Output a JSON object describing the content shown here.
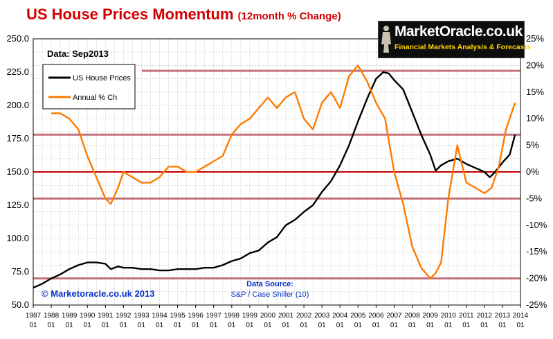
{
  "title": {
    "main": "US House Prices Momentum",
    "sub": "(12month % Change)"
  },
  "logo": {
    "name": "MarketOracle.co.uk",
    "tagline": "Financial Markets Analysis & Forecasts"
  },
  "annotations": {
    "data_date": "Data:  Sep2013",
    "copyright": "© Marketoracle.co.uk 2013",
    "source_label": "Data Source:",
    "source_value": "S&P / Case Shiller (10)"
  },
  "colors": {
    "house_prices": "#000000",
    "annual_change": "#ff7a00",
    "title": "#d40000",
    "horizontal_lines": "#b85c64",
    "zero_line": "#c00000",
    "copyright": "#0a2fc8",
    "source": "#0a2fc8"
  },
  "chart_data": {
    "type": "line",
    "title": "US House Prices Momentum",
    "subtitle": "(12month % Change)",
    "legend_position": "top-left",
    "grid": true,
    "ylim": [
      50,
      250
    ],
    "y2lim": [
      -25,
      25
    ],
    "y_ticks": [
      "50.0",
      "75.0",
      "100.0",
      "125.0",
      "150.0",
      "175.0",
      "200.0",
      "225.0",
      "250.0"
    ],
    "y2_ticks": [
      "-25%",
      "-20%",
      "-15%",
      "-10%",
      "-5%",
      "0%",
      "5%",
      "10%",
      "15%",
      "20%",
      "25%"
    ],
    "x_ticks": [
      {
        "year": "1987",
        "month": "01"
      },
      {
        "year": "1988",
        "month": "01"
      },
      {
        "year": "1989",
        "month": "01"
      },
      {
        "year": "1990",
        "month": "01"
      },
      {
        "year": "1991",
        "month": "01"
      },
      {
        "year": "1992",
        "month": "01"
      },
      {
        "year": "1993",
        "month": "01"
      },
      {
        "year": "1994",
        "month": "01"
      },
      {
        "year": "1995",
        "month": "01"
      },
      {
        "year": "1996",
        "month": "01"
      },
      {
        "year": "1997",
        "month": "01"
      },
      {
        "year": "1998",
        "month": "01"
      },
      {
        "year": "1999",
        "month": "01"
      },
      {
        "year": "2000",
        "month": "01"
      },
      {
        "year": "2001",
        "month": "01"
      },
      {
        "year": "2002",
        "month": "01"
      },
      {
        "year": "2003",
        "month": "01"
      },
      {
        "year": "2004",
        "month": "01"
      },
      {
        "year": "2005",
        "month": "01"
      },
      {
        "year": "2006",
        "month": "01"
      },
      {
        "year": "2007",
        "month": "01"
      },
      {
        "year": "2008",
        "month": "01"
      },
      {
        "year": "2009",
        "month": "01"
      },
      {
        "year": "2010",
        "month": "01"
      },
      {
        "year": "2011",
        "month": "01"
      },
      {
        "year": "2012",
        "month": "01"
      },
      {
        "year": "2013",
        "month": "01"
      },
      {
        "year": "2014",
        "month": "01"
      }
    ],
    "horizontal_lines_pct": [
      19,
      7,
      0,
      -5,
      -20
    ],
    "series": [
      {
        "name": "US House Prices",
        "axis": "left",
        "points": [
          [
            1987.0,
            63
          ],
          [
            1987.5,
            66
          ],
          [
            1988.0,
            70
          ],
          [
            1988.5,
            73
          ],
          [
            1989.0,
            77
          ],
          [
            1989.5,
            80
          ],
          [
            1990.0,
            82
          ],
          [
            1990.5,
            82
          ],
          [
            1991.0,
            81
          ],
          [
            1991.3,
            77
          ],
          [
            1991.7,
            79
          ],
          [
            1992.0,
            78
          ],
          [
            1992.5,
            78
          ],
          [
            1993.0,
            77
          ],
          [
            1993.5,
            77
          ],
          [
            1994.0,
            76
          ],
          [
            1994.5,
            76
          ],
          [
            1995.0,
            77
          ],
          [
            1995.5,
            77
          ],
          [
            1996.0,
            77
          ],
          [
            1996.5,
            78
          ],
          [
            1997.0,
            78
          ],
          [
            1997.5,
            80
          ],
          [
            1998.0,
            83
          ],
          [
            1998.5,
            85
          ],
          [
            1999.0,
            89
          ],
          [
            1999.5,
            91
          ],
          [
            2000.0,
            97
          ],
          [
            2000.5,
            101
          ],
          [
            2001.0,
            110
          ],
          [
            2001.5,
            114
          ],
          [
            2002.0,
            120
          ],
          [
            2002.5,
            125
          ],
          [
            2003.0,
            135
          ],
          [
            2003.5,
            143
          ],
          [
            2004.0,
            155
          ],
          [
            2004.5,
            170
          ],
          [
            2005.0,
            188
          ],
          [
            2005.5,
            205
          ],
          [
            2006.0,
            220
          ],
          [
            2006.4,
            225
          ],
          [
            2006.7,
            224
          ],
          [
            2007.0,
            219
          ],
          [
            2007.5,
            212
          ],
          [
            2008.0,
            195
          ],
          [
            2008.5,
            178
          ],
          [
            2009.0,
            163
          ],
          [
            2009.3,
            151
          ],
          [
            2009.6,
            155
          ],
          [
            2010.0,
            158
          ],
          [
            2010.5,
            160
          ],
          [
            2011.0,
            156
          ],
          [
            2011.5,
            153
          ],
          [
            2012.0,
            150
          ],
          [
            2012.3,
            146
          ],
          [
            2012.6,
            150
          ],
          [
            2013.0,
            157
          ],
          [
            2013.4,
            163
          ],
          [
            2013.7,
            178
          ]
        ]
      },
      {
        "name": "Annual % Ch",
        "axis": "right",
        "points": [
          [
            1988.0,
            11
          ],
          [
            1988.5,
            11
          ],
          [
            1989.0,
            10
          ],
          [
            1989.5,
            8
          ],
          [
            1990.0,
            3
          ],
          [
            1990.5,
            -1
          ],
          [
            1991.0,
            -5
          ],
          [
            1991.3,
            -6
          ],
          [
            1991.7,
            -3
          ],
          [
            1992.0,
            0
          ],
          [
            1992.5,
            -1
          ],
          [
            1993.0,
            -2
          ],
          [
            1993.5,
            -2
          ],
          [
            1994.0,
            -1
          ],
          [
            1994.5,
            1
          ],
          [
            1995.0,
            1
          ],
          [
            1995.5,
            0
          ],
          [
            1996.0,
            0
          ],
          [
            1996.5,
            1
          ],
          [
            1997.0,
            2
          ],
          [
            1997.5,
            3
          ],
          [
            1998.0,
            7
          ],
          [
            1998.5,
            9
          ],
          [
            1999.0,
            10
          ],
          [
            1999.5,
            12
          ],
          [
            2000.0,
            14
          ],
          [
            2000.5,
            12
          ],
          [
            2001.0,
            14
          ],
          [
            2001.5,
            15
          ],
          [
            2002.0,
            10
          ],
          [
            2002.5,
            8
          ],
          [
            2003.0,
            13
          ],
          [
            2003.5,
            15
          ],
          [
            2004.0,
            12
          ],
          [
            2004.5,
            18
          ],
          [
            2005.0,
            20
          ],
          [
            2005.5,
            17
          ],
          [
            2006.0,
            13
          ],
          [
            2006.5,
            10
          ],
          [
            2007.0,
            0
          ],
          [
            2007.5,
            -6
          ],
          [
            2008.0,
            -14
          ],
          [
            2008.5,
            -18
          ],
          [
            2009.0,
            -20
          ],
          [
            2009.3,
            -19
          ],
          [
            2009.6,
            -17
          ],
          [
            2010.0,
            -5
          ],
          [
            2010.5,
            5
          ],
          [
            2011.0,
            -2
          ],
          [
            2011.5,
            -3
          ],
          [
            2012.0,
            -4
          ],
          [
            2012.4,
            -3
          ],
          [
            2012.8,
            1
          ],
          [
            2013.2,
            8
          ],
          [
            2013.5,
            11
          ],
          [
            2013.7,
            13
          ]
        ]
      }
    ]
  }
}
